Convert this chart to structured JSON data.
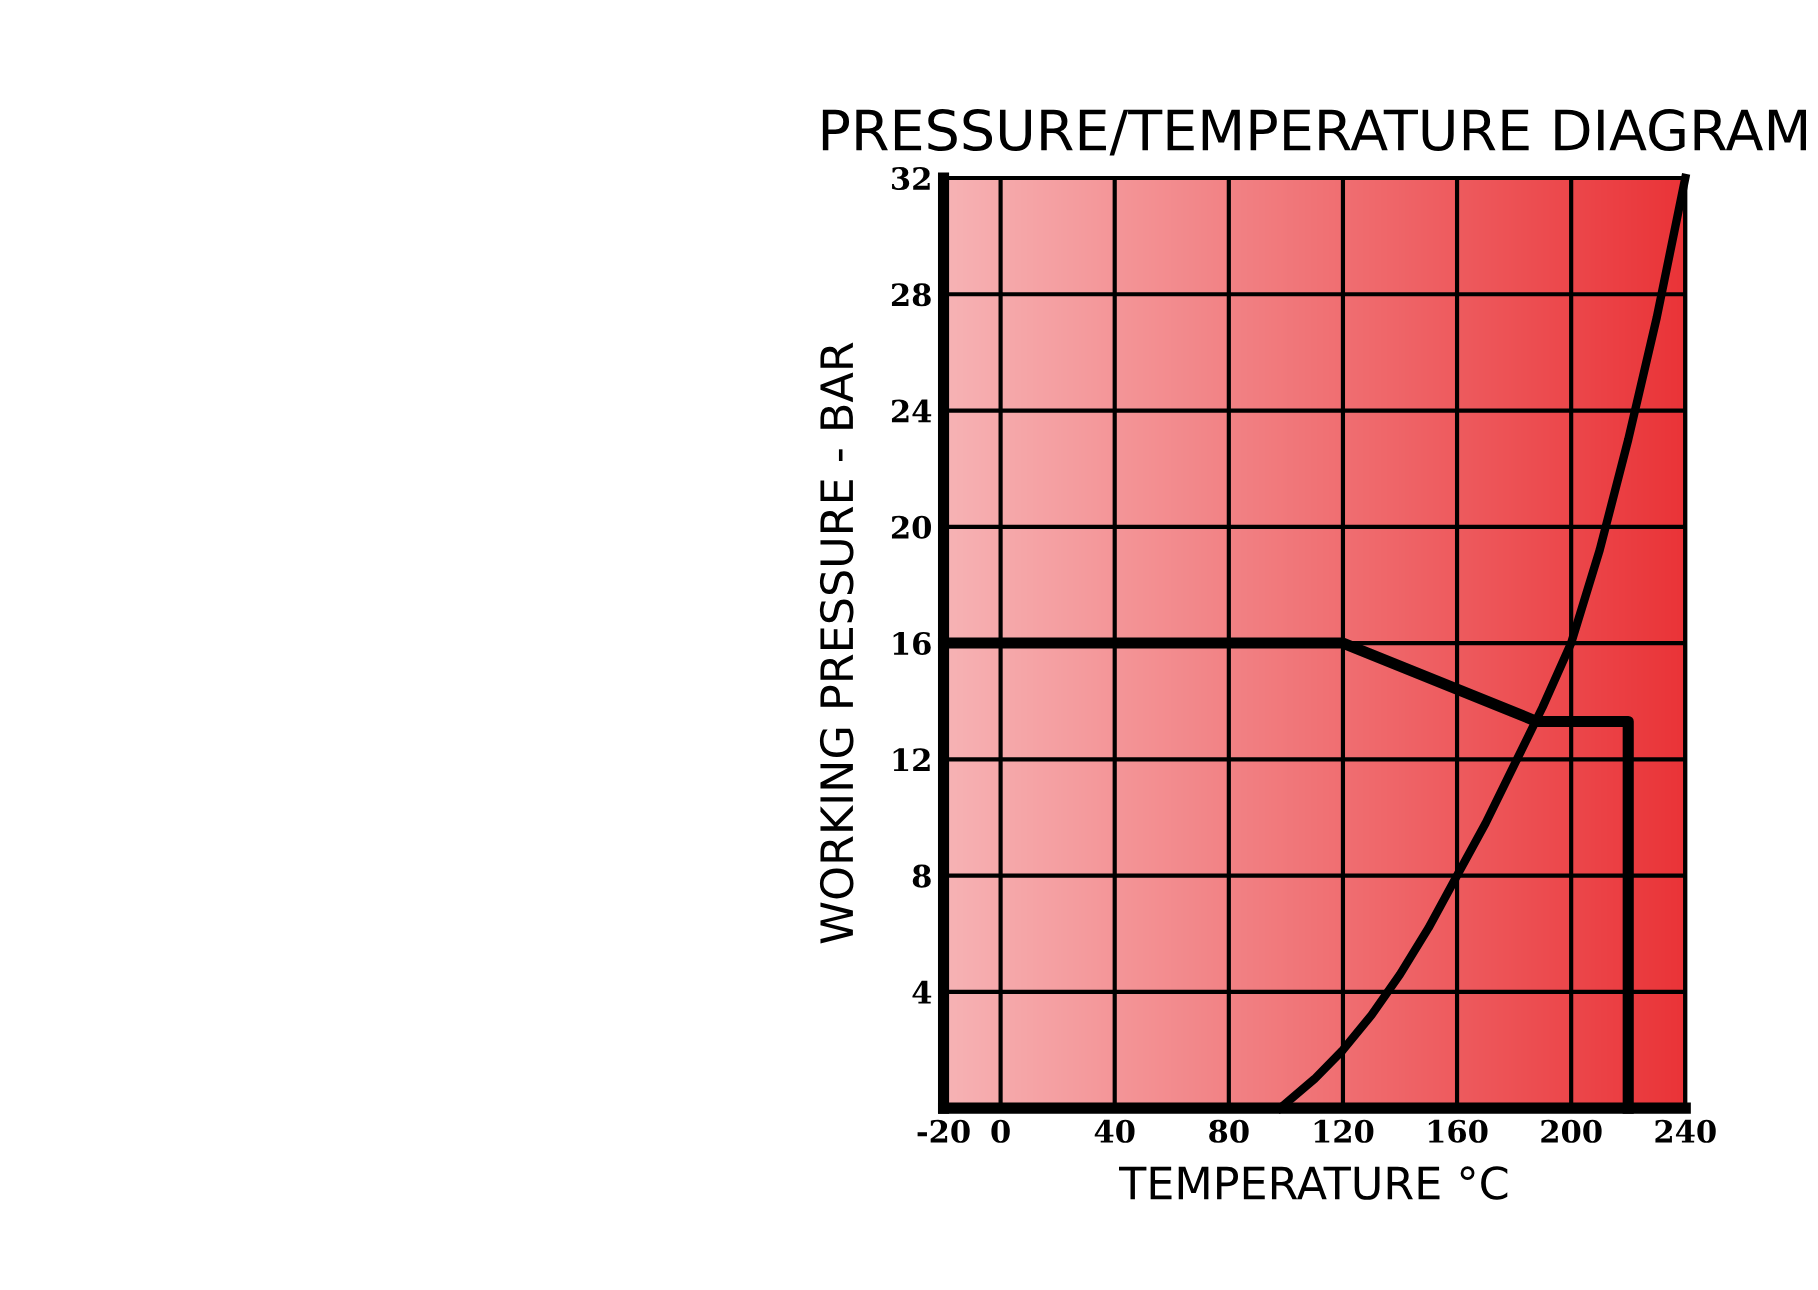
{
  "chart_data": {
    "type": "line",
    "title": "PRESSURE/TEMPERATURE DIAGRAM",
    "xlabel": "TEMPERATURE °C",
    "ylabel": "WORKING PRESSURE - BAR",
    "series": [
      {
        "color": "#000000",
        "x": [
          -20,
          120,
          188,
          220,
          220
        ],
        "values": [
          16,
          16,
          13.3,
          13.3,
          0
        ]
      },
      {
        "color": "#000000",
        "x": [
          98,
          110,
          120,
          130,
          140,
          150,
          160,
          170,
          180,
          190,
          200,
          210,
          220,
          230,
          240
        ],
        "values": [
          0,
          1,
          2,
          3.2,
          4.6,
          6.2,
          8,
          9.8,
          11.8,
          13.8,
          16,
          19.2,
          23,
          27.2,
          32
        ]
      }
    ],
    "xlim": [
      -20,
      240
    ],
    "xticks": [
      -20,
      0,
      40,
      80,
      120,
      160,
      200,
      240
    ],
    "ylim": [
      0,
      32
    ],
    "yticks": [
      4,
      8,
      12,
      16,
      20,
      24,
      28,
      32
    ],
    "grid": true,
    "marker": "none",
    "line_style": "solid"
  }
}
